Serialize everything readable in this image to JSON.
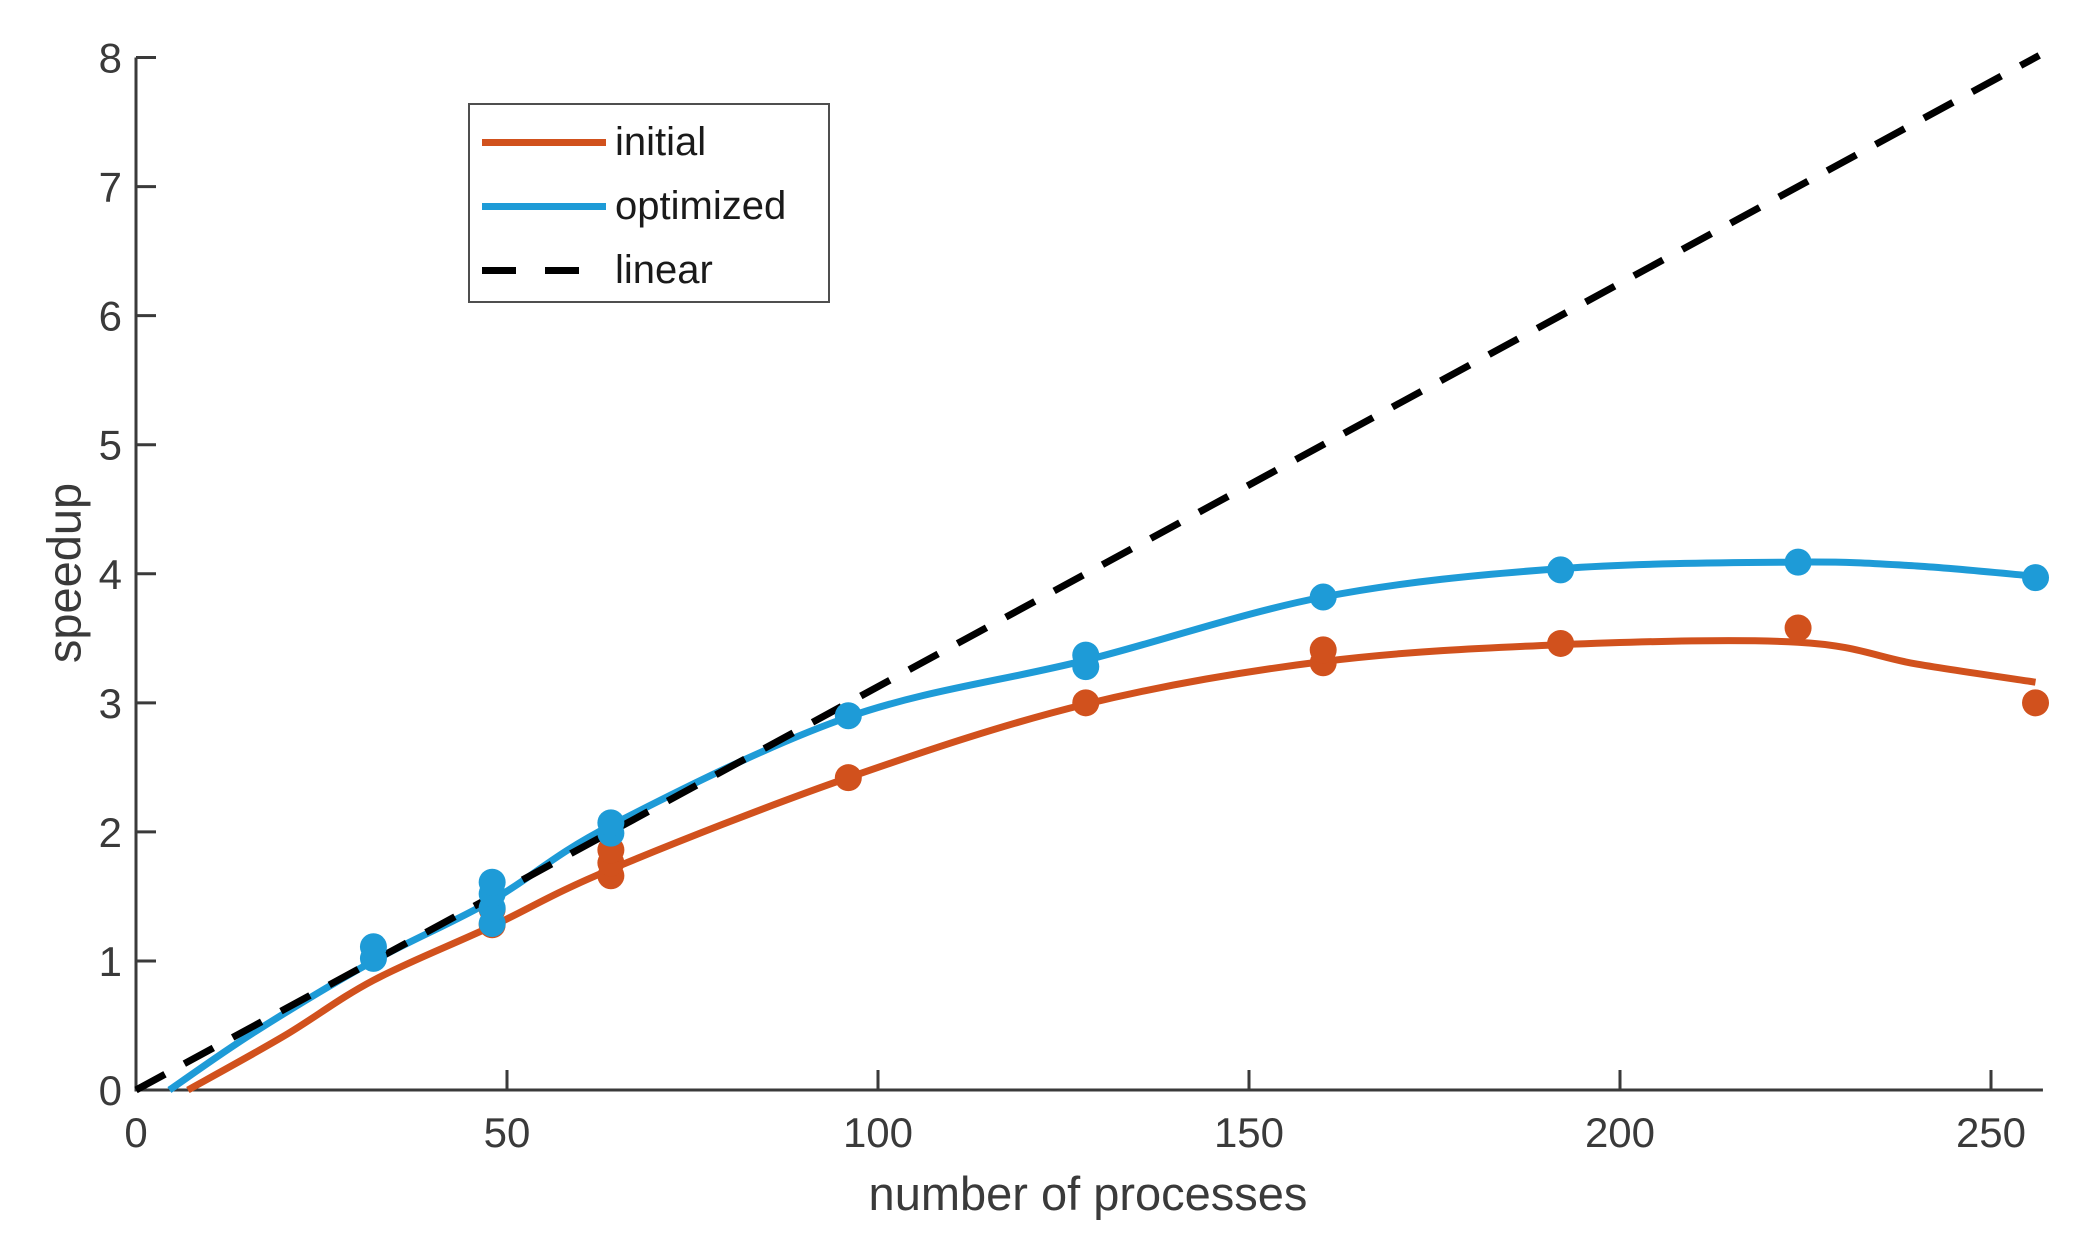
{
  "chart_data": {
    "type": "line+scatter",
    "title": "",
    "xlabel": "number of processes",
    "ylabel": "speedup",
    "xlim": [
      0,
      257
    ],
    "ylim": [
      0,
      8
    ],
    "xticks": [
      0,
      50,
      100,
      150,
      200,
      250
    ],
    "yticks": [
      0,
      1,
      2,
      3,
      4,
      5,
      6,
      7,
      8
    ],
    "grid": false,
    "legend_position": "top-left",
    "axis_color": "#3a3a3a",
    "series": [
      {
        "name": "initial",
        "legend_label": "initial",
        "color": "#d1511d",
        "style": "solid",
        "curve": [
          [
            7,
            0
          ],
          [
            20,
            0.42
          ],
          [
            32,
            0.85
          ],
          [
            48,
            1.27
          ],
          [
            64,
            1.71
          ],
          [
            96,
            2.42
          ],
          [
            128,
            2.99
          ],
          [
            160,
            3.32
          ],
          [
            192,
            3.45
          ],
          [
            224,
            3.47
          ],
          [
            240,
            3.3
          ],
          [
            256,
            3.16
          ]
        ],
        "points": [
          [
            48,
            1.28
          ],
          [
            48,
            1.4
          ],
          [
            64,
            1.66
          ],
          [
            64,
            1.76
          ],
          [
            64,
            1.86
          ],
          [
            96,
            2.42
          ],
          [
            128,
            3.0
          ],
          [
            160,
            3.31
          ],
          [
            160,
            3.41
          ],
          [
            192,
            3.46
          ],
          [
            224,
            3.58
          ],
          [
            256,
            3.0
          ]
        ]
      },
      {
        "name": "optimized",
        "legend_label": "optimized",
        "color": "#1e9bd7",
        "style": "solid",
        "curve": [
          [
            4.5,
            0
          ],
          [
            16,
            0.45
          ],
          [
            32,
            1.0
          ],
          [
            48,
            1.47
          ],
          [
            64,
            2.05
          ],
          [
            96,
            2.89
          ],
          [
            128,
            3.33
          ],
          [
            160,
            3.82
          ],
          [
            192,
            4.04
          ],
          [
            224,
            4.09
          ],
          [
            240,
            4.06
          ],
          [
            256,
            3.98
          ]
        ],
        "points": [
          [
            32,
            1.02
          ],
          [
            32,
            1.11
          ],
          [
            48,
            1.29
          ],
          [
            48,
            1.41
          ],
          [
            48,
            1.52
          ],
          [
            48,
            1.61
          ],
          [
            64,
            1.99
          ],
          [
            64,
            2.07
          ],
          [
            96,
            2.9
          ],
          [
            128,
            3.28
          ],
          [
            128,
            3.37
          ],
          [
            160,
            3.82
          ],
          [
            192,
            4.03
          ],
          [
            224,
            4.09
          ],
          [
            256,
            3.97
          ]
        ]
      },
      {
        "name": "linear",
        "legend_label": "linear",
        "color": "#000000",
        "style": "dashed",
        "line": [
          [
            0,
            0
          ],
          [
            256.5,
            8.016
          ]
        ]
      }
    ]
  }
}
